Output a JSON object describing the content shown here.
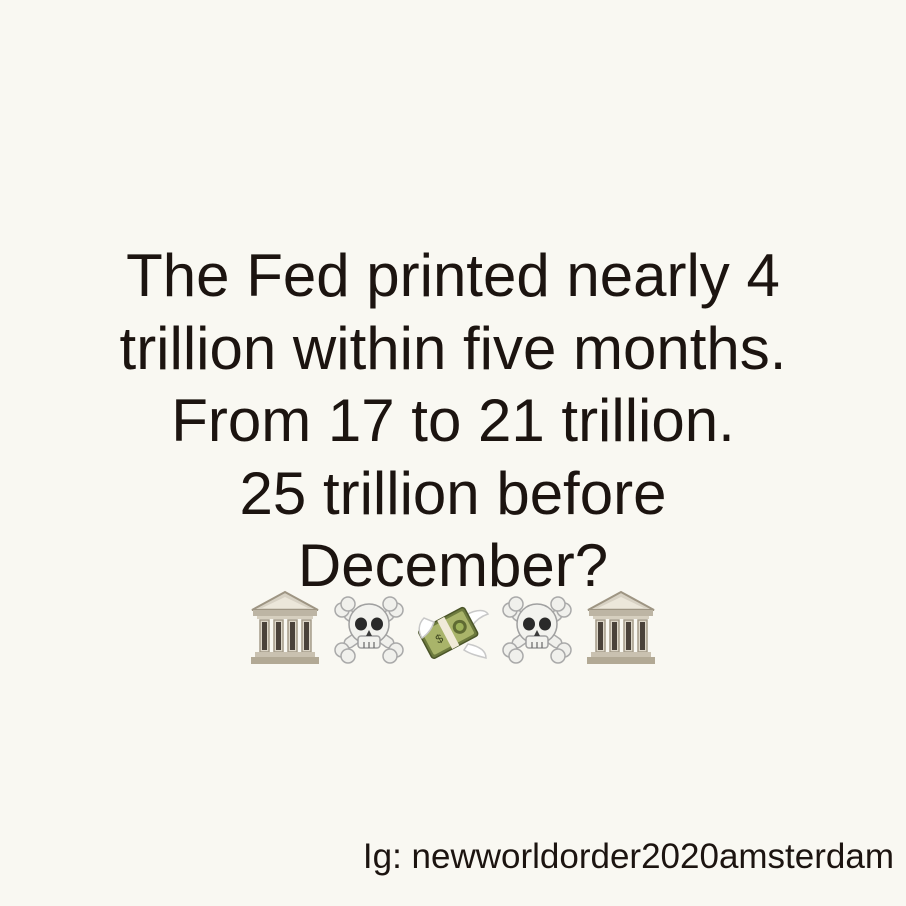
{
  "message": {
    "lines": [
      "The Fed printed nearly 4",
      "trillion within five months.",
      "From 17 to 21 trillion.",
      "25 trillion before",
      "December?"
    ]
  },
  "emojis": [
    "bank-icon",
    "skull-crossbones-icon",
    "money-with-wings-icon",
    "skull-crossbones-icon",
    "bank-icon"
  ],
  "credit": "Ig: newworldorder2020amsterdam",
  "colors": {
    "background": "#f9f8f2",
    "text": "#1c1410"
  }
}
